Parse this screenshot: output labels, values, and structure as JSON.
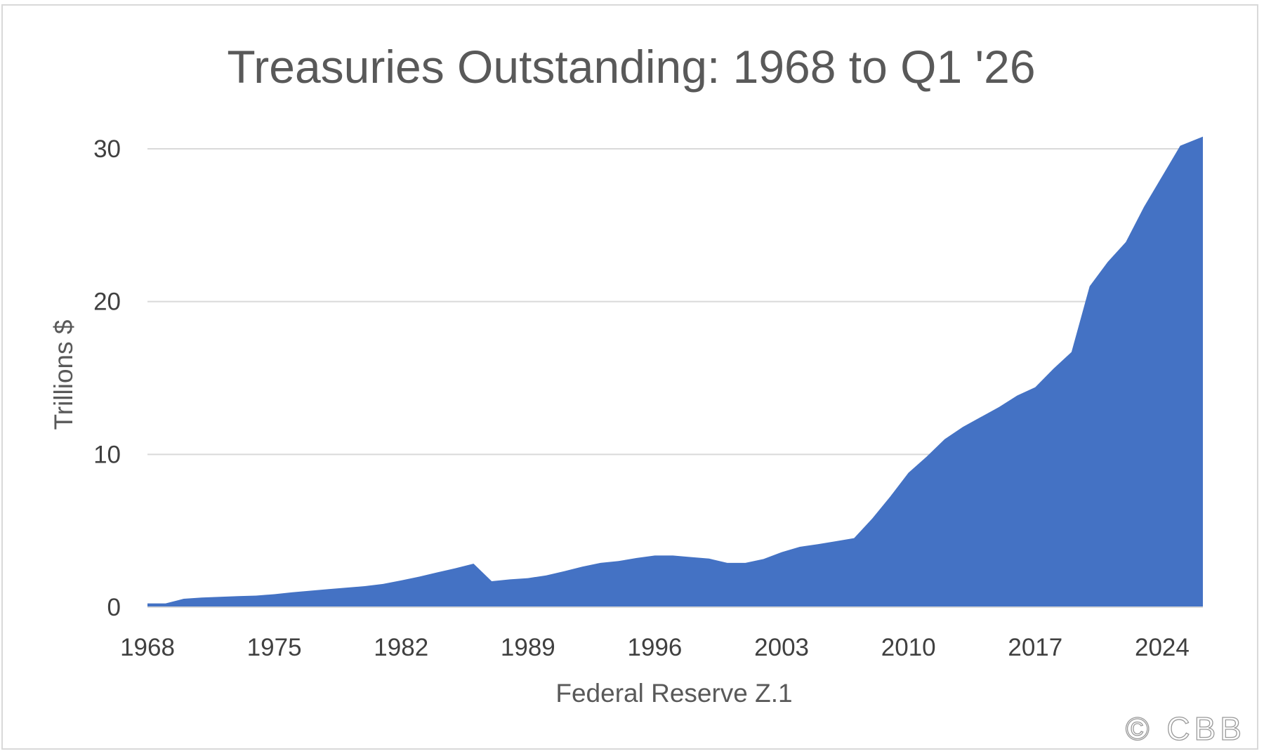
{
  "chart_data": {
    "type": "area",
    "title": "Treasuries Outstanding: 1968 to Q1 '26",
    "xlabel": "Federal Reserve Z.1",
    "ylabel": "Trillions $",
    "x_tick_labels": [
      "1968",
      "1975",
      "1982",
      "1989",
      "1996",
      "2003",
      "2010",
      "2017",
      "2024"
    ],
    "y_tick_labels": [
      "0",
      "10",
      "20",
      "30"
    ],
    "ylim": [
      0,
      30
    ],
    "grid": "horizontal",
    "legend": "none",
    "fill_color": "#4472c4",
    "grid_color": "#d9d9d9",
    "series": [
      {
        "x": [
          1968,
          1969,
          1970,
          1971,
          1972,
          1973,
          1974,
          1975,
          1976,
          1977,
          1978,
          1979,
          1980,
          1981,
          1982,
          1983,
          1984,
          1985,
          1986,
          1987,
          1988,
          1989,
          1990,
          1991,
          1992,
          1993,
          1994,
          1995,
          1996,
          1997,
          1998,
          1999,
          2000,
          2001,
          2002,
          2003,
          2004,
          2005,
          2006,
          2007,
          2008,
          2009,
          2010,
          2011,
          2012,
          2013,
          2014,
          2015,
          2016,
          2017,
          2018,
          2019,
          2020,
          2021,
          2022,
          2023,
          2024,
          2025,
          2026.25
        ],
        "values": [
          0.25,
          0.25,
          0.55,
          0.63,
          0.68,
          0.72,
          0.76,
          0.85,
          0.98,
          1.08,
          1.18,
          1.28,
          1.38,
          1.52,
          1.75,
          2.0,
          2.28,
          2.55,
          2.85,
          1.7,
          1.82,
          1.9,
          2.08,
          2.35,
          2.65,
          2.9,
          3.02,
          3.22,
          3.38,
          3.38,
          3.28,
          3.18,
          2.9,
          2.9,
          3.15,
          3.6,
          3.95,
          4.12,
          4.32,
          4.52,
          5.8,
          7.25,
          8.8,
          9.85,
          11.0,
          11.8,
          12.45,
          13.1,
          13.85,
          14.4,
          15.6,
          16.7,
          21.0,
          22.6,
          23.9,
          26.2,
          28.2,
          30.2,
          30.8
        ]
      }
    ]
  },
  "watermark": "© CBB"
}
